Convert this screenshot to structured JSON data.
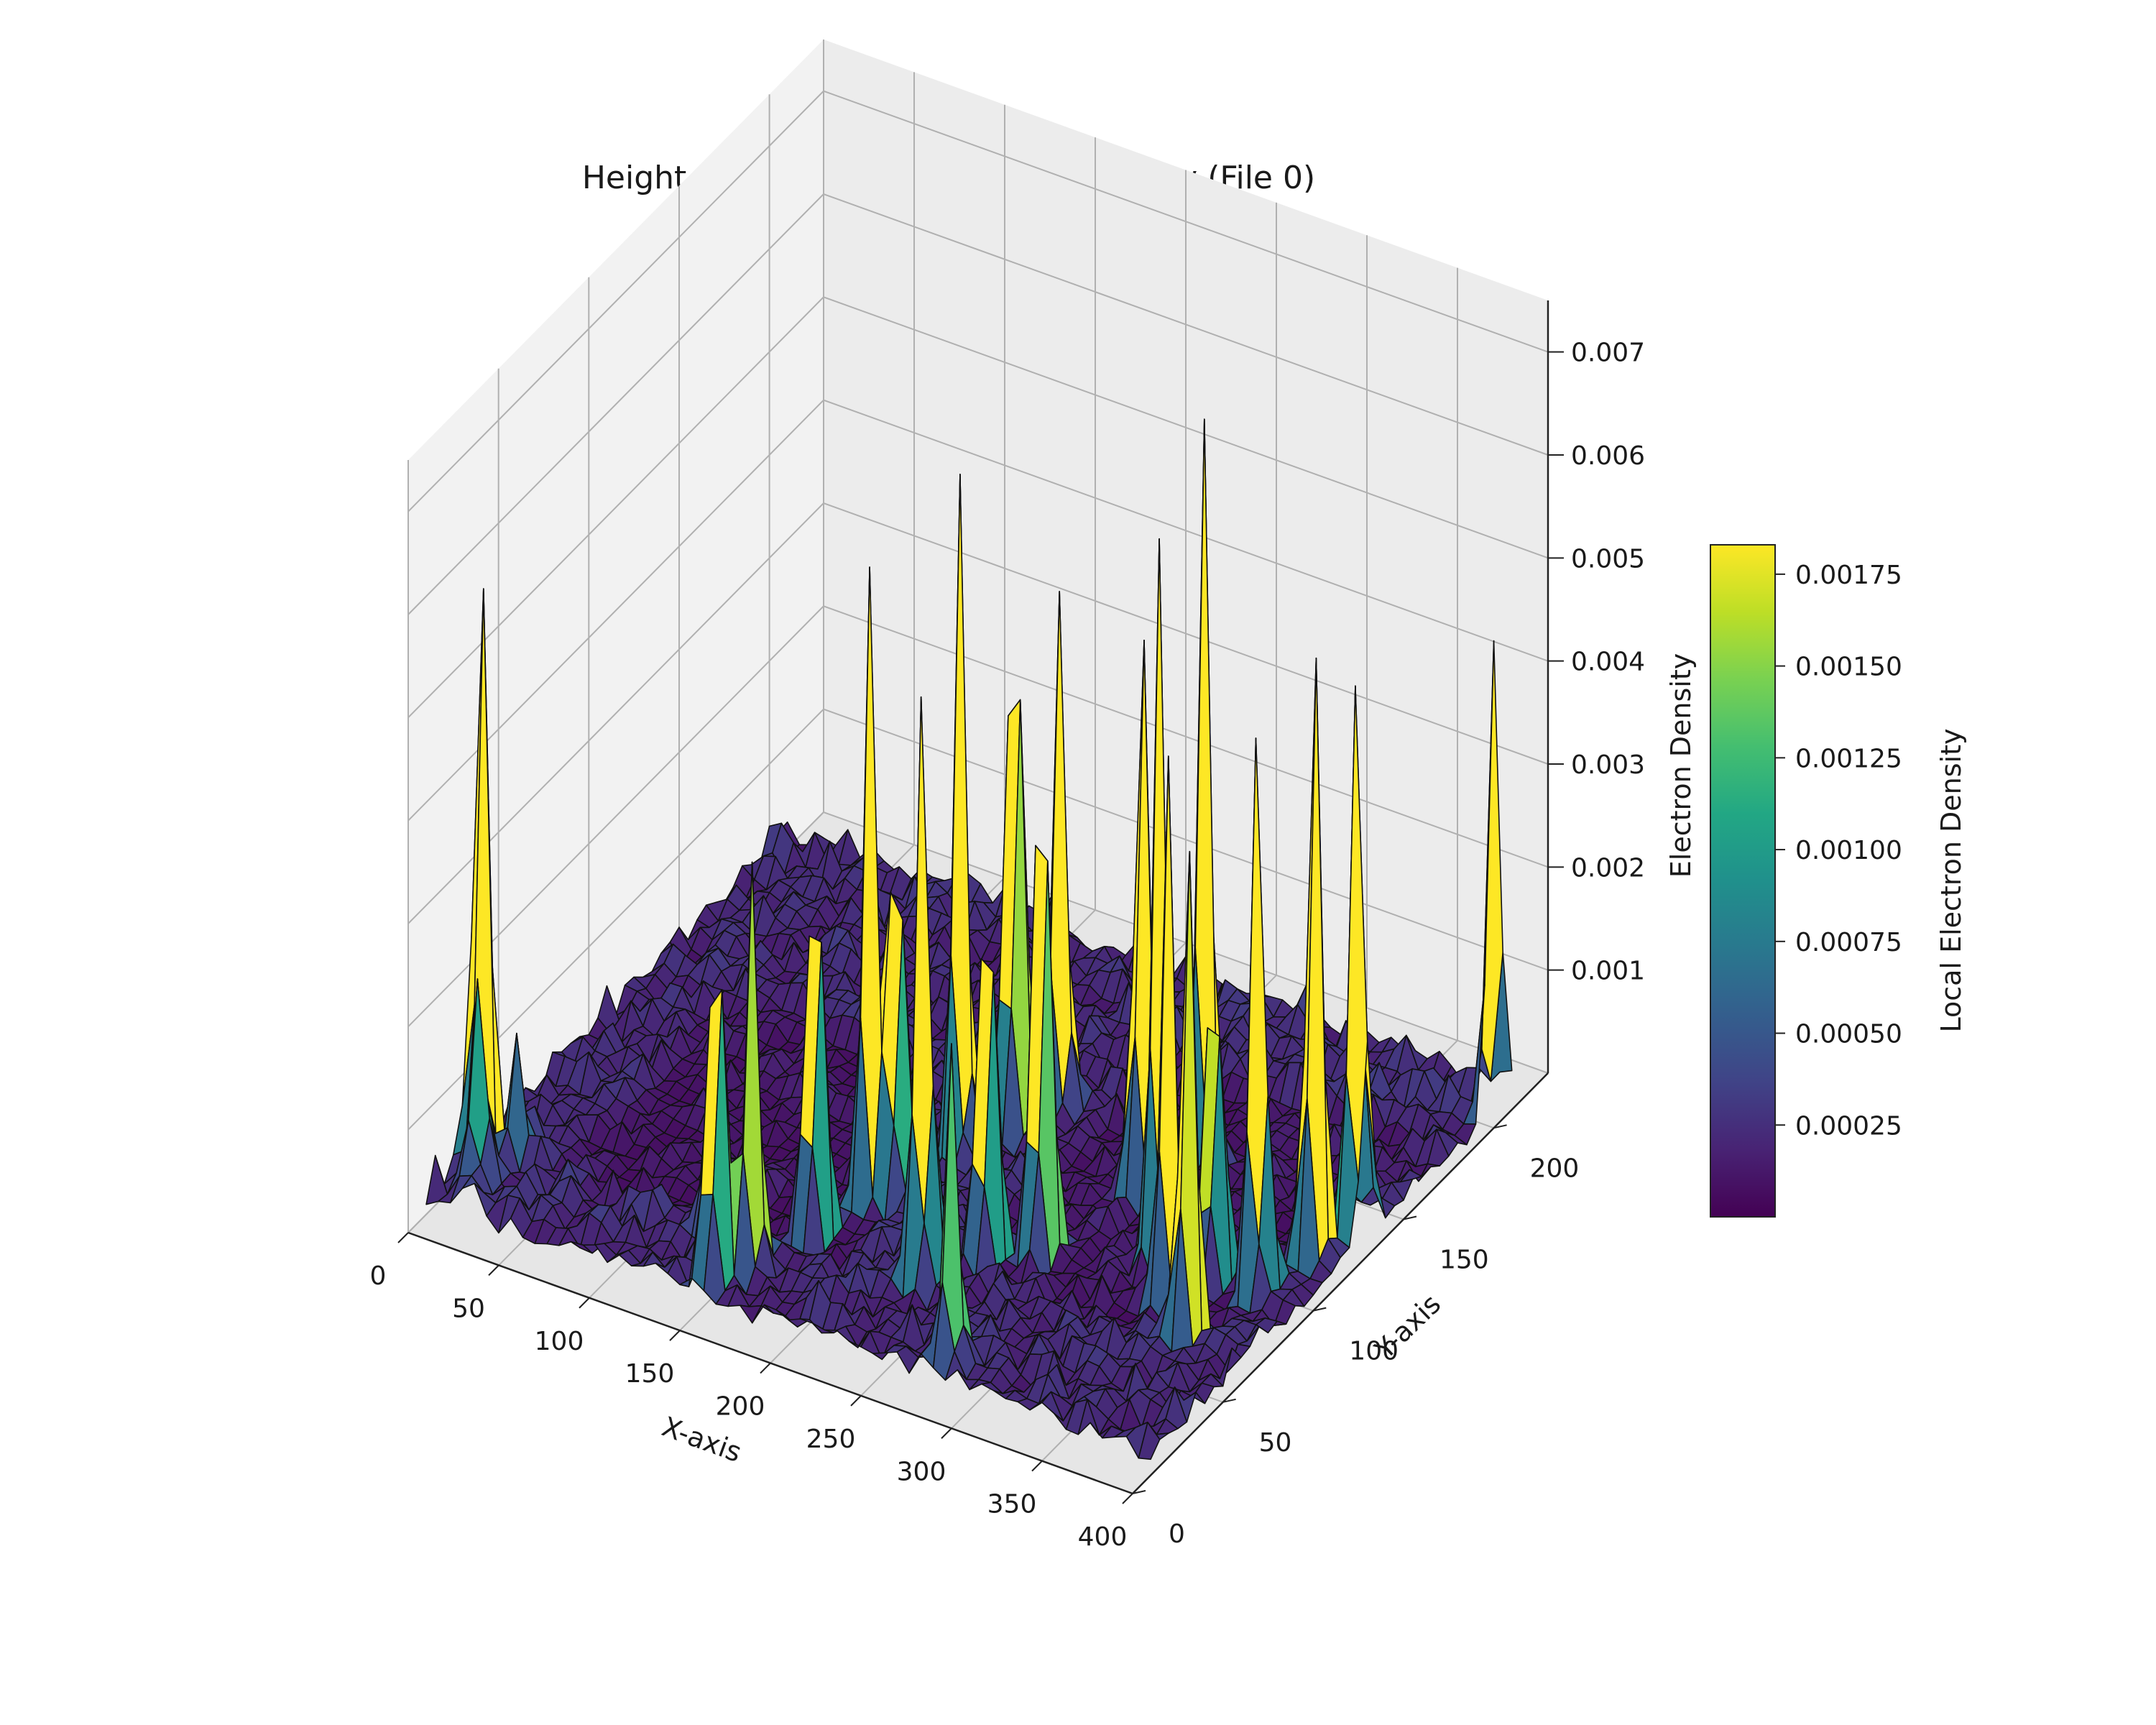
{
  "chart_data": {
    "type": "surface",
    "title": "Height Profile of Local Electron Density (File 0)",
    "xlabel": "X-axis",
    "ylabel": "Y-axis",
    "zlabel": "Electron Density",
    "xlim": [
      0,
      400
    ],
    "ylim": [
      0,
      230
    ],
    "zlim": [
      0,
      0.0075
    ],
    "x_ticks": [
      "0",
      "50",
      "100",
      "150",
      "200",
      "250",
      "300",
      "350",
      "400"
    ],
    "y_ticks": [
      "0",
      "50",
      "100",
      "150",
      "200"
    ],
    "z_ticks": [
      "0.001",
      "0.002",
      "0.003",
      "0.004",
      "0.005",
      "0.006",
      "0.007"
    ],
    "colormap": "viridis",
    "colorbar": {
      "label": "Local Electron Density",
      "min": 0.0,
      "max": 0.00183,
      "ticks": [
        "0.00025",
        "0.00050",
        "0.00075",
        "0.00100",
        "0.00125",
        "0.00150",
        "0.00175"
      ]
    },
    "peaks": [
      {
        "x": 5,
        "y": 35,
        "z": 0.0063
      },
      {
        "x": 15,
        "y": 25,
        "z": 0.0023
      },
      {
        "x": 20,
        "y": 40,
        "z": 0.0012
      },
      {
        "x": 150,
        "y": 20,
        "z": 0.0045
      },
      {
        "x": 160,
        "y": 30,
        "z": 0.004
      },
      {
        "x": 170,
        "y": 55,
        "z": 0.005
      },
      {
        "x": 180,
        "y": 75,
        "z": 0.0062
      },
      {
        "x": 190,
        "y": 80,
        "z": 0.0048
      },
      {
        "x": 200,
        "y": 105,
        "z": 0.0065
      },
      {
        "x": 210,
        "y": 125,
        "z": 0.007
      },
      {
        "x": 220,
        "y": 140,
        "z": 0.005
      },
      {
        "x": 235,
        "y": 50,
        "z": 0.0064
      },
      {
        "x": 250,
        "y": 70,
        "z": 0.0049
      },
      {
        "x": 270,
        "y": 80,
        "z": 0.0065
      },
      {
        "x": 285,
        "y": 120,
        "z": 0.006
      },
      {
        "x": 300,
        "y": 140,
        "z": 0.0072
      },
      {
        "x": 320,
        "y": 95,
        "z": 0.007
      },
      {
        "x": 340,
        "y": 80,
        "z": 0.0053
      },
      {
        "x": 350,
        "y": 95,
        "z": 0.004
      },
      {
        "x": 365,
        "y": 65,
        "z": 0.0055
      },
      {
        "x": 375,
        "y": 95,
        "z": 0.0062
      },
      {
        "x": 385,
        "y": 115,
        "z": 0.0065
      },
      {
        "x": 395,
        "y": 130,
        "z": 0.006
      },
      {
        "x": 400,
        "y": 200,
        "z": 0.0045
      },
      {
        "x": 280,
        "y": 20,
        "z": 0.003
      },
      {
        "x": 130,
        "y": 40,
        "z": 0.0025
      }
    ]
  }
}
